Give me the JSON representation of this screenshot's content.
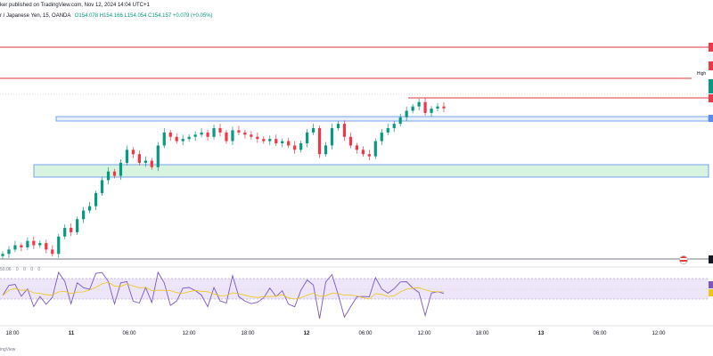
{
  "header": {
    "publisher_text": "ker published on TradingView.com, Nov 12, 2024 14:04 UTC+1",
    "symbol_text": "r / Japanese Yen, 15, OANDA",
    "ohlc_text": "O154.078 H154.166 L154.054 C154.157 +0.079 (+0.05%)"
  },
  "labels": {
    "high": "High"
  },
  "rsi": {
    "legend_values": [
      "50.06",
      "0",
      "0",
      "0",
      "0"
    ]
  },
  "time_axis": {
    "ticks": [
      "18:00",
      "11",
      "06:00",
      "12:00",
      "18:00",
      "12",
      "06:00",
      "12:00",
      "18:00",
      "13",
      "06:00",
      "12:00"
    ]
  },
  "footer": {
    "text": "ingView"
  },
  "colors": {
    "up": "#089981",
    "down": "#f23645",
    "level_red": "#e03a3e",
    "zone_blue_border": "#5b8def",
    "zone_green_fill": "#d8f3df",
    "rsi_line": "#7e57c2",
    "rsi_ma": "#f0c419",
    "rsi_band": "#ece6f8"
  },
  "chart_data": {
    "type": "candlestick",
    "title": "",
    "xlabel": "",
    "ylabel": "",
    "price_levels_note": "horizontal resistance lines and support/demand zones drawn on chart",
    "close_series": [
      150.8,
      150.9,
      151.0,
      150.95,
      151.1,
      151.0,
      151.05,
      150.9,
      150.8,
      151.2,
      151.4,
      151.3,
      151.6,
      151.8,
      151.9,
      152.2,
      152.5,
      152.7,
      152.6,
      152.9,
      153.2,
      153.1,
      152.9,
      152.95,
      152.8,
      153.3,
      153.6,
      153.5,
      153.4,
      153.45,
      153.5,
      153.55,
      153.6,
      153.5,
      153.7,
      153.6,
      153.4,
      153.65,
      153.6,
      153.55,
      153.5,
      153.45,
      153.4,
      153.45,
      153.35,
      153.4,
      153.3,
      153.2,
      153.35,
      153.6,
      153.7,
      153.1,
      153.3,
      153.7,
      153.8,
      153.5,
      153.3,
      153.2,
      153.1,
      153.05,
      153.4,
      153.6,
      153.7,
      153.8,
      153.95,
      154.1,
      154.2,
      154.3,
      154.05,
      154.15,
      154.2,
      154.157
    ]
  }
}
